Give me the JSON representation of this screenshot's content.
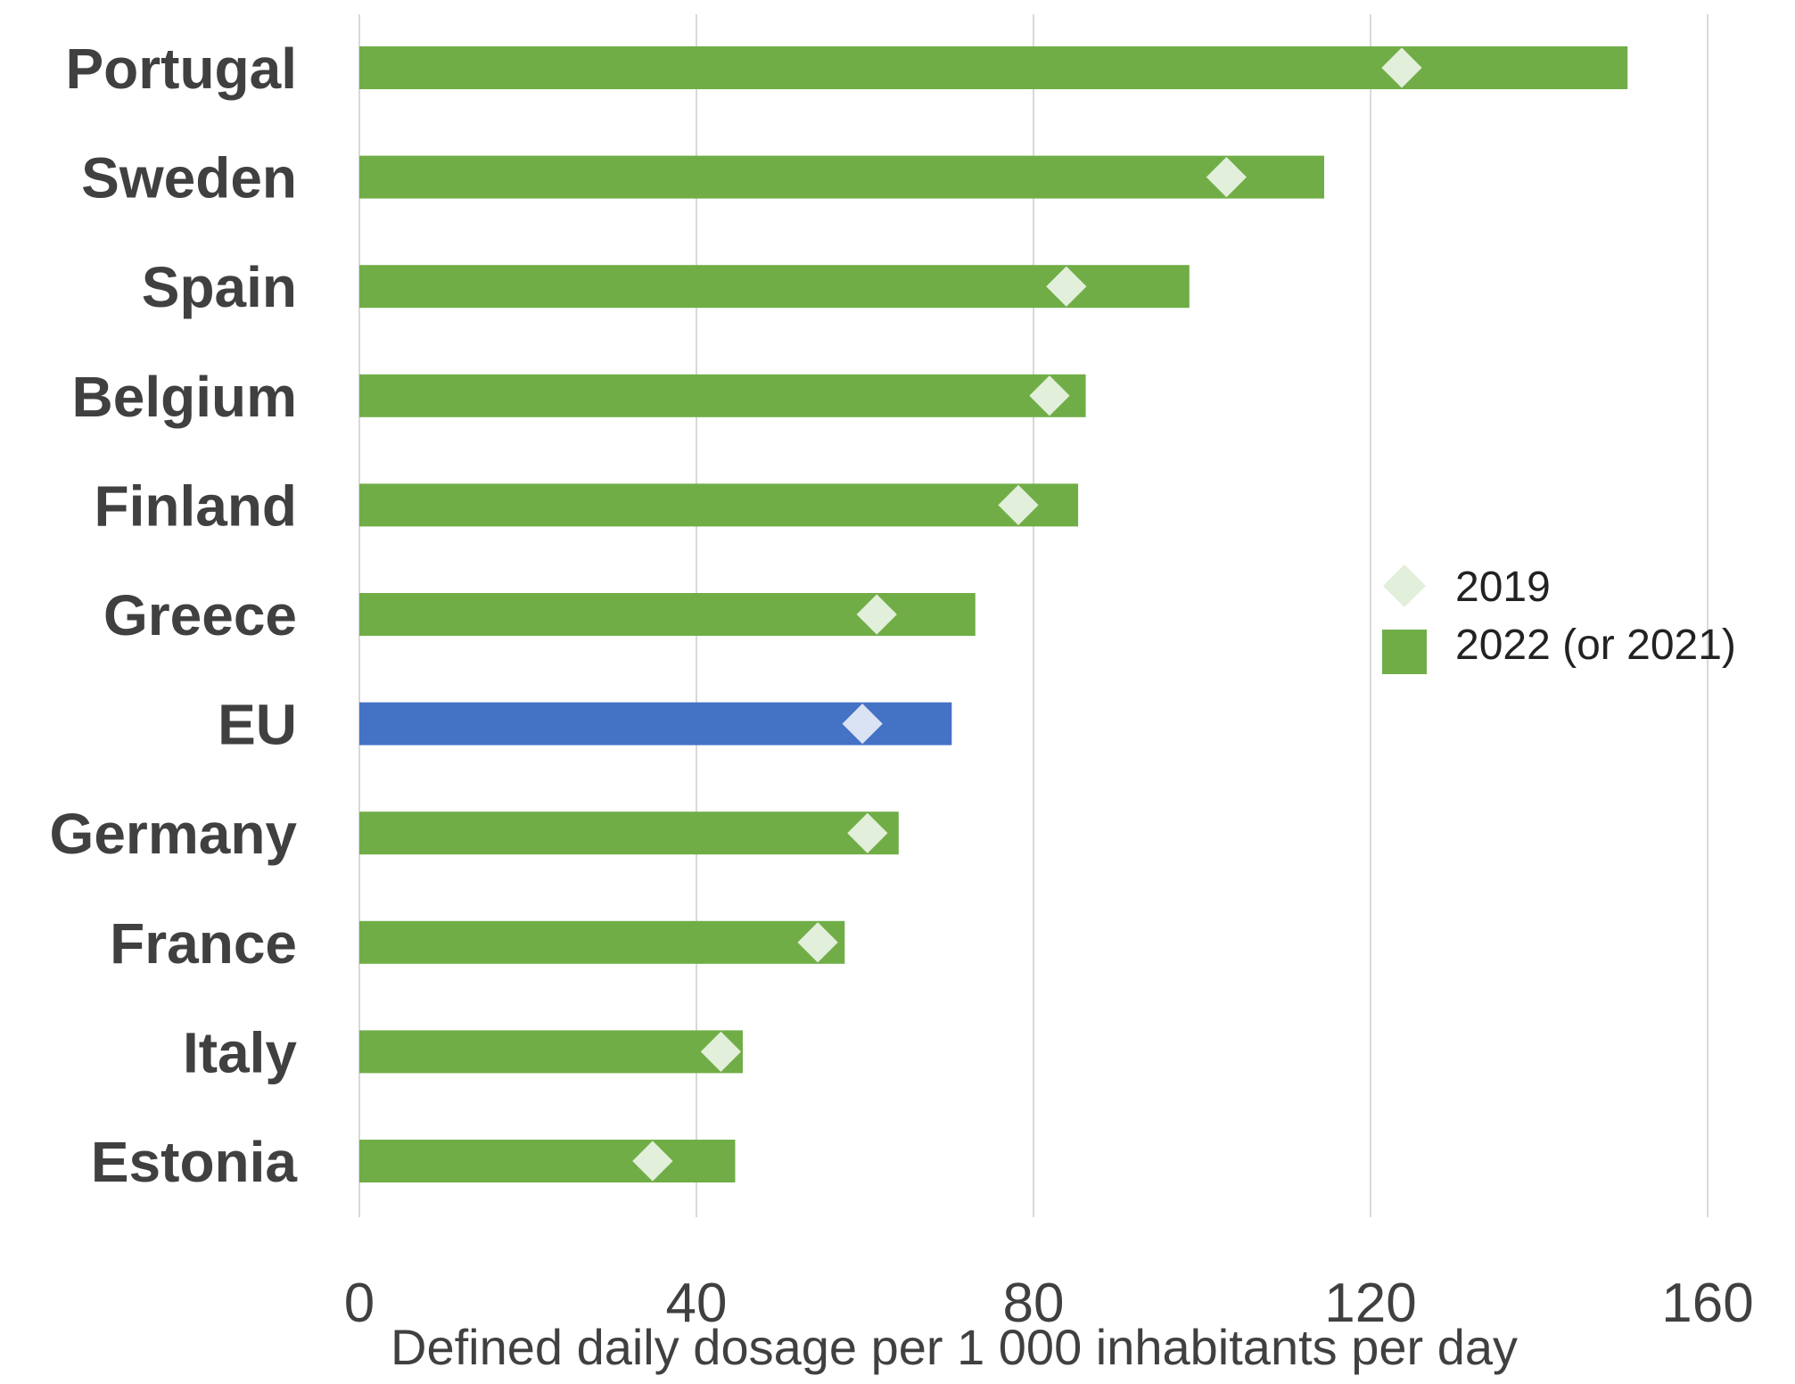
{
  "chart_data": {
    "type": "bar",
    "orientation": "horizontal",
    "categories": [
      "Portugal",
      "Sweden",
      "Spain",
      "Belgium",
      "Finland",
      "Greece",
      "EU",
      "Germany",
      "France",
      "Italy",
      "Estonia"
    ],
    "series": [
      {
        "name": "2022 (or 2021)",
        "type": "bar",
        "values": [
          150.5,
          114.5,
          98.5,
          86.2,
          85.3,
          73.1,
          70.3,
          64.0,
          57.6,
          45.5,
          44.6
        ]
      },
      {
        "name": "2019",
        "type": "marker",
        "values": [
          123.7,
          102.9,
          83.9,
          81.9,
          78.2,
          61.4,
          59.7,
          60.3,
          54.4,
          42.9,
          34.8
        ]
      }
    ],
    "xlabel": "Defined daily dosage per 1 000 inhabitants per day",
    "ylabel": "",
    "xlim": [
      0,
      160
    ],
    "xticks": [
      0,
      40,
      80,
      120,
      160
    ],
    "grid": true,
    "legend_position": "right",
    "highlight_category": "EU",
    "colors": {
      "bar": "#70ad47",
      "bar_highlight": "#4472c4",
      "marker": "#e2efda",
      "marker_highlight": "#dae3f3",
      "grid": "#d9d9d9",
      "text": "#404040"
    }
  }
}
